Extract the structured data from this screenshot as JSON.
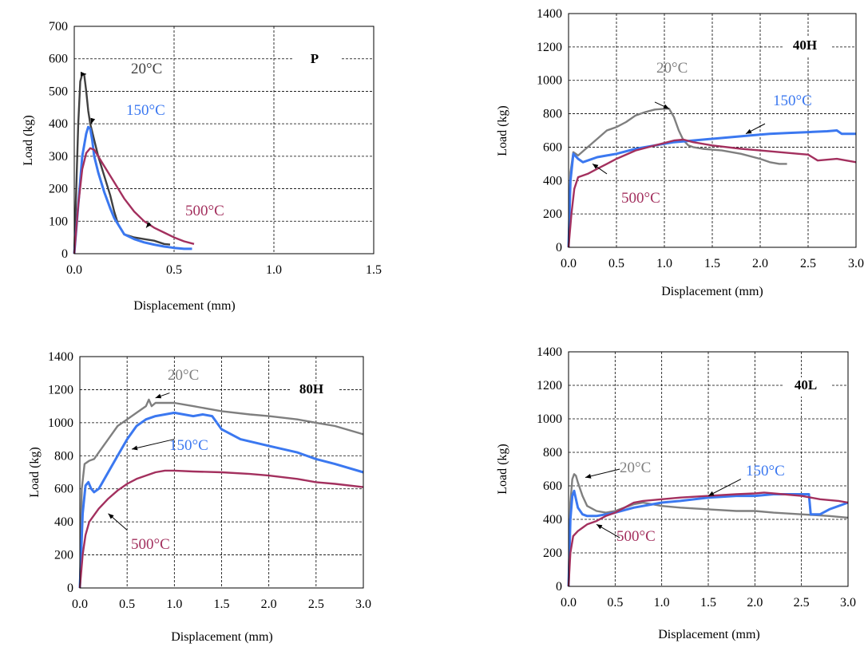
{
  "colors": {
    "t20": "#7f7f7f",
    "t20_panelP": "#404040",
    "t150": "#3b78f0",
    "t500": "#a3305e"
  },
  "chart_data": [
    {
      "id": "P",
      "type": "line",
      "title": "P",
      "xlabel": "Displacement (mm)",
      "ylabel": "Load (kg)",
      "xlim": [
        0,
        1.5
      ],
      "ylim": [
        0,
        700
      ],
      "xticks": [
        "0.0",
        "0.5",
        "1.0",
        "1.5"
      ],
      "yticks": [
        "0",
        "100",
        "200",
        "300",
        "400",
        "500",
        "600",
        "700"
      ],
      "grid": true,
      "series": [
        {
          "name": "20°C",
          "color_key": "t20_panelP",
          "x": [
            0,
            0.01,
            0.02,
            0.03,
            0.04,
            0.05,
            0.06,
            0.07,
            0.08,
            0.1,
            0.12,
            0.15,
            0.18,
            0.2,
            0.22,
            0.25,
            0.3,
            0.35,
            0.4,
            0.45,
            0.48
          ],
          "y": [
            0,
            200,
            400,
            530,
            553,
            550,
            500,
            440,
            400,
            350,
            300,
            240,
            180,
            130,
            90,
            60,
            50,
            45,
            40,
            30,
            28
          ]
        },
        {
          "name": "150°C",
          "color_key": "t150",
          "x": [
            0,
            0.02,
            0.04,
            0.06,
            0.07,
            0.08,
            0.09,
            0.1,
            0.12,
            0.15,
            0.18,
            0.2,
            0.25,
            0.3,
            0.35,
            0.4,
            0.45,
            0.5,
            0.55,
            0.59
          ],
          "y": [
            0,
            150,
            300,
            370,
            390,
            385,
            350,
            300,
            250,
            190,
            140,
            110,
            60,
            45,
            35,
            28,
            22,
            18,
            15,
            15
          ]
        },
        {
          "name": "500°C",
          "color_key": "t500",
          "x": [
            0,
            0.02,
            0.04,
            0.06,
            0.08,
            0.1,
            0.12,
            0.15,
            0.2,
            0.25,
            0.3,
            0.35,
            0.4,
            0.45,
            0.5,
            0.55,
            0.6
          ],
          "y": [
            0,
            150,
            260,
            310,
            325,
            320,
            300,
            270,
            220,
            170,
            130,
            100,
            80,
            65,
            50,
            38,
            30
          ]
        }
      ],
      "annotations": [
        {
          "label": "20°C",
          "color_key": "t20_panelP",
          "series": 0
        },
        {
          "label": "150°C",
          "color_key": "t150",
          "series": 1
        },
        {
          "label": "500°C",
          "color_key": "t500",
          "series": 2
        }
      ]
    },
    {
      "id": "40H",
      "type": "line",
      "title": "40H",
      "xlabel": "Displacement (mm)",
      "ylabel": "Load (kg)",
      "xlim": [
        0,
        3
      ],
      "ylim": [
        0,
        1400
      ],
      "xticks": [
        "0.0",
        "0.5",
        "1.0",
        "1.5",
        "2.0",
        "2.5",
        "3.0"
      ],
      "yticks": [
        "0",
        "200",
        "400",
        "600",
        "800",
        "1000",
        "1200",
        "1400"
      ],
      "grid": true,
      "series": [
        {
          "name": "20°C",
          "color_key": "t20",
          "x": [
            0,
            0.02,
            0.05,
            0.1,
            0.2,
            0.3,
            0.4,
            0.5,
            0.6,
            0.7,
            0.8,
            0.9,
            1.0,
            1.05,
            1.1,
            1.15,
            1.2,
            1.25,
            1.3,
            1.4,
            1.6,
            1.8,
            2.0,
            2.1,
            2.2,
            2.28
          ],
          "y": [
            0,
            450,
            570,
            550,
            600,
            650,
            700,
            720,
            750,
            790,
            810,
            825,
            830,
            830,
            780,
            700,
            640,
            610,
            600,
            590,
            580,
            560,
            530,
            510,
            500,
            500
          ]
        },
        {
          "name": "150°C",
          "color_key": "t150",
          "x": [
            0,
            0.02,
            0.05,
            0.1,
            0.15,
            0.2,
            0.3,
            0.4,
            0.5,
            0.7,
            0.9,
            1.1,
            1.3,
            1.5,
            1.7,
            1.9,
            2.1,
            2.3,
            2.5,
            2.7,
            2.8,
            2.85,
            3.0
          ],
          "y": [
            0,
            400,
            560,
            530,
            510,
            520,
            540,
            550,
            560,
            590,
            610,
            630,
            640,
            650,
            660,
            670,
            680,
            685,
            690,
            695,
            700,
            680,
            680
          ]
        },
        {
          "name": "500°C",
          "color_key": "t500",
          "x": [
            0,
            0.03,
            0.06,
            0.1,
            0.15,
            0.2,
            0.3,
            0.4,
            0.5,
            0.7,
            0.9,
            1.1,
            1.2,
            1.3,
            1.5,
            1.8,
            2.0,
            2.2,
            2.4,
            2.5,
            2.6,
            2.8,
            3.0
          ],
          "y": [
            0,
            200,
            350,
            420,
            430,
            440,
            470,
            500,
            530,
            580,
            610,
            640,
            645,
            630,
            610,
            590,
            580,
            570,
            560,
            555,
            520,
            530,
            510
          ]
        }
      ],
      "annotations": [
        {
          "label": "20°C",
          "color_key": "t20",
          "series": 0
        },
        {
          "label": "150°C",
          "color_key": "t150",
          "series": 1
        },
        {
          "label": "500°C",
          "color_key": "t500",
          "series": 2
        }
      ]
    },
    {
      "id": "80H",
      "type": "line",
      "title": "80H",
      "xlabel": "Displacement (mm)",
      "ylabel": "Load (kg)",
      "xlim": [
        0,
        3
      ],
      "ylim": [
        0,
        1400
      ],
      "xticks": [
        "0.0",
        "0.5",
        "1.0",
        "1.5",
        "2.0",
        "2.5",
        "3.0"
      ],
      "yticks": [
        "0",
        "200",
        "400",
        "600",
        "800",
        "1000",
        "1200",
        "1400"
      ],
      "grid": true,
      "series": [
        {
          "name": "20°C",
          "color_key": "t20",
          "x": [
            0,
            0.02,
            0.05,
            0.1,
            0.15,
            0.2,
            0.3,
            0.4,
            0.5,
            0.6,
            0.7,
            0.73,
            0.76,
            0.8,
            1.0,
            1.2,
            1.5,
            1.8,
            2.0,
            2.3,
            2.5,
            2.7,
            3.0
          ],
          "y": [
            0,
            600,
            750,
            770,
            780,
            820,
            900,
            980,
            1020,
            1060,
            1100,
            1140,
            1100,
            1120,
            1120,
            1100,
            1070,
            1050,
            1040,
            1020,
            1000,
            980,
            930
          ]
        },
        {
          "name": "150°C",
          "color_key": "t150",
          "x": [
            0,
            0.03,
            0.06,
            0.09,
            0.12,
            0.15,
            0.2,
            0.3,
            0.4,
            0.5,
            0.6,
            0.7,
            0.8,
            0.9,
            1.0,
            1.1,
            1.2,
            1.3,
            1.4,
            1.5,
            1.7,
            2.0,
            2.3,
            2.5,
            2.7,
            3.0
          ],
          "y": [
            0,
            450,
            620,
            640,
            600,
            580,
            600,
            700,
            800,
            900,
            980,
            1020,
            1040,
            1050,
            1060,
            1050,
            1040,
            1050,
            1040,
            960,
            900,
            860,
            820,
            780,
            750,
            700
          ]
        },
        {
          "name": "500°C",
          "color_key": "t500",
          "x": [
            0,
            0.03,
            0.06,
            0.1,
            0.2,
            0.3,
            0.4,
            0.5,
            0.6,
            0.7,
            0.8,
            0.9,
            1.0,
            1.2,
            1.5,
            1.8,
            2.0,
            2.3,
            2.5,
            2.7,
            3.0
          ],
          "y": [
            0,
            200,
            320,
            400,
            480,
            540,
            590,
            630,
            660,
            680,
            700,
            710,
            710,
            705,
            700,
            690,
            680,
            660,
            640,
            630,
            610
          ]
        }
      ],
      "annotations": [
        {
          "label": "20°C",
          "color_key": "t20",
          "series": 0
        },
        {
          "label": "150°C",
          "color_key": "t150",
          "series": 1
        },
        {
          "label": "500°C",
          "color_key": "t500",
          "series": 2
        }
      ]
    },
    {
      "id": "40L",
      "type": "line",
      "title": "40L",
      "xlabel": "Displacement (mm)",
      "ylabel": "Load (kg)",
      "xlim": [
        0,
        3
      ],
      "ylim": [
        0,
        1400
      ],
      "xticks": [
        "0.0",
        "0.5",
        "1.0",
        "1.5",
        "2.0",
        "2.5",
        "3.0"
      ],
      "yticks": [
        "0",
        "200",
        "400",
        "600",
        "800",
        "1000",
        "1200",
        "1400"
      ],
      "grid": true,
      "series": [
        {
          "name": "20°C",
          "color_key": "t20",
          "x": [
            0,
            0.02,
            0.04,
            0.06,
            0.08,
            0.1,
            0.15,
            0.2,
            0.3,
            0.4,
            0.5,
            0.6,
            0.7,
            0.8,
            1.0,
            1.2,
            1.5,
            1.8,
            2.0,
            2.2,
            2.5,
            2.8,
            3.0
          ],
          "y": [
            0,
            500,
            640,
            670,
            660,
            620,
            540,
            480,
            450,
            440,
            450,
            470,
            490,
            500,
            480,
            470,
            460,
            450,
            450,
            440,
            430,
            420,
            410
          ]
        },
        {
          "name": "150°C",
          "color_key": "t150",
          "x": [
            0,
            0.02,
            0.04,
            0.06,
            0.08,
            0.1,
            0.15,
            0.2,
            0.3,
            0.5,
            0.7,
            0.9,
            1.0,
            1.2,
            1.5,
            1.8,
            2.0,
            2.2,
            2.4,
            2.58,
            2.6,
            2.62,
            2.7,
            2.8,
            3.0
          ],
          "y": [
            0,
            400,
            540,
            570,
            520,
            470,
            430,
            420,
            420,
            440,
            470,
            490,
            500,
            510,
            530,
            540,
            540,
            550,
            550,
            550,
            430,
            430,
            430,
            460,
            500
          ]
        },
        {
          "name": "500°C",
          "color_key": "t500",
          "x": [
            0,
            0.02,
            0.05,
            0.1,
            0.15,
            0.2,
            0.3,
            0.4,
            0.5,
            0.6,
            0.7,
            0.8,
            1.0,
            1.2,
            1.5,
            1.8,
            2.0,
            2.1,
            2.3,
            2.5,
            2.7,
            2.9,
            3.0
          ],
          "y": [
            0,
            200,
            300,
            330,
            350,
            370,
            390,
            420,
            440,
            470,
            500,
            510,
            520,
            530,
            540,
            550,
            555,
            560,
            550,
            540,
            520,
            510,
            500
          ]
        }
      ],
      "annotations": [
        {
          "label": "20°C",
          "color_key": "t20",
          "series": 0
        },
        {
          "label": "150°C",
          "color_key": "t150",
          "series": 1
        },
        {
          "label": "500°C",
          "color_key": "t500",
          "series": 2
        }
      ]
    }
  ]
}
